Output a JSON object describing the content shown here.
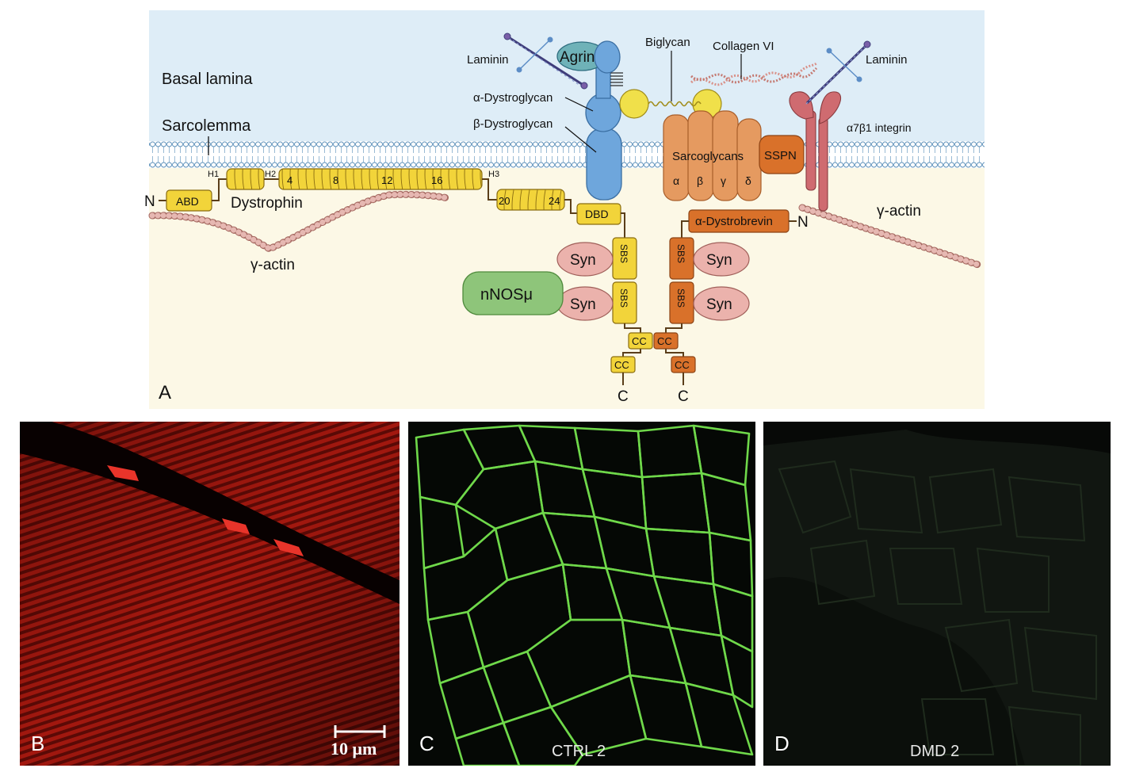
{
  "panel_a": {
    "letter": "A",
    "regions": {
      "basal_lamina": "Basal lamina",
      "sarcolemma": "Sarcolemma"
    },
    "labels": {
      "laminin_left": "Laminin",
      "laminin_right": "Laminin",
      "agrin": "Agrin",
      "biglycan": "Biglycan",
      "collagen_vi": "Collagen VI",
      "alpha_dystroglycan": "α-Dystroglycan",
      "beta_dystroglycan": "β-Dystroglycan",
      "integrin": "α7β1 integrin",
      "sarcoglycans": "Sarcoglycans",
      "sg_alpha": "α",
      "sg_beta": "β",
      "sg_gamma": "γ",
      "sg_delta": "δ",
      "sspn": "SSPN",
      "dystrophin": "Dystrophin",
      "abd": "ABD",
      "n_left": "N",
      "h1": "H1",
      "h2": "H2",
      "h3": "H3",
      "rod_4": "4",
      "rod_8": "8",
      "rod_12": "12",
      "rod_16": "16",
      "rod_20": "20",
      "rod_24": "24",
      "dbd": "DBD",
      "gamma_actin_left": "γ-actin",
      "gamma_actin_right": "γ-actin",
      "dystrobrevin": "α-Dystrobrevin",
      "n_right": "N",
      "syn": "Syn",
      "sbs": "SBS",
      "nnos": "nNOSμ",
      "cc": "CC",
      "c_terminus": "C"
    },
    "colors": {
      "basal": "#deedf7",
      "cytoplasm": "#fcf8e6",
      "dystrophin": "#f2d43a",
      "dystroglycan": "#6ea6dc",
      "sarcoglycan": "#e59a60",
      "dystrobrevin": "#d9712a",
      "syntrophin": "#ebb2ac",
      "nnos": "#8ec57a",
      "integrin": "#cf6b70",
      "actin": "#d9a6a0"
    }
  },
  "panel_b": {
    "letter": "B",
    "scale_bar": "10 μm"
  },
  "panel_c": {
    "letter": "C",
    "caption": "CTRL 2"
  },
  "panel_d": {
    "letter": "D",
    "caption": "DMD 2"
  }
}
